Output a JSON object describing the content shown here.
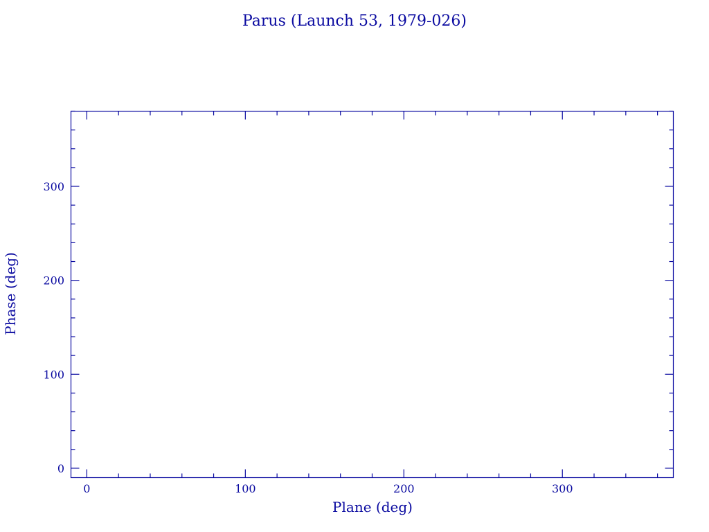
{
  "chart_data": {
    "type": "scatter",
    "title": "Parus (Launch 53, 1979-026)",
    "xlabel": "Plane (deg)",
    "ylabel": "Phase (deg)",
    "xlim": [
      -10,
      370
    ],
    "ylim": [
      -10,
      380
    ],
    "x_ticks": [
      0,
      100,
      200,
      300
    ],
    "y_ticks": [
      0,
      100,
      200,
      300
    ],
    "minor_tick_step": 20,
    "grid": false,
    "series": [],
    "color": "#0a0aa0"
  }
}
